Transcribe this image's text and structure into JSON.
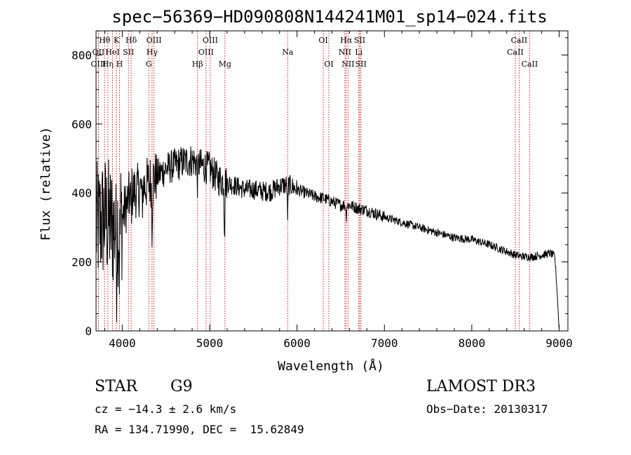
{
  "chart_data": {
    "type": "line",
    "title": "spec−56369−HD090808N144241M01_sp14−024.fits",
    "xlabel": "Wavelength (Å)",
    "ylabel": "Flux (relative)",
    "xlim": [
      3700,
      9100
    ],
    "ylim": [
      0,
      870
    ],
    "xticks": [
      4000,
      5000,
      6000,
      7000,
      8000,
      9000
    ],
    "yticks": [
      0,
      200,
      400,
      600,
      800
    ],
    "line_color": "#000000",
    "marker_color": "#cc0000",
    "grid": false,
    "legend": "none",
    "spectral_lines": [
      {
        "label": "Hθ",
        "wavelength": 3798,
        "row": 0
      },
      {
        "label": "OII",
        "wavelength": 3727,
        "row": 1
      },
      {
        "label": "OIII",
        "wavelength": 3727,
        "row": 2
      },
      {
        "label": "Hη",
        "wavelength": 3835,
        "row": 2
      },
      {
        "label": "K",
        "wavelength": 3934,
        "row": 0
      },
      {
        "label": "HeI",
        "wavelength": 3889,
        "row": 1
      },
      {
        "label": "SII",
        "wavelength": 4071,
        "row": 1
      },
      {
        "label": "H",
        "wavelength": 3969,
        "row": 2
      },
      {
        "label": "Hδ",
        "wavelength": 4102,
        "row": 0
      },
      {
        "label": "OIII",
        "wavelength": 4363,
        "row": 0
      },
      {
        "label": "Hγ",
        "wavelength": 4341,
        "row": 1
      },
      {
        "label": "G",
        "wavelength": 4304,
        "row": 2
      },
      {
        "label": "Hβ",
        "wavelength": 4861,
        "row": 2
      },
      {
        "label": "OIII",
        "wavelength": 5007,
        "row": 0
      },
      {
        "label": "OIII",
        "wavelength": 4959,
        "row": 1
      },
      {
        "label": "Mg",
        "wavelength": 5175,
        "row": 2
      },
      {
        "label": "Na",
        "wavelength": 5893,
        "row": 1
      },
      {
        "label": "OI",
        "wavelength": 6300,
        "row": 0
      },
      {
        "label": "OI",
        "wavelength": 6364,
        "row": 2
      },
      {
        "label": "Hα",
        "wavelength": 6563,
        "row": 0
      },
      {
        "label": "NII",
        "wavelength": 6548,
        "row": 1
      },
      {
        "label": "NII",
        "wavelength": 6584,
        "row": 2
      },
      {
        "label": "SII",
        "wavelength": 6717,
        "row": 0
      },
      {
        "label": "Li",
        "wavelength": 6707,
        "row": 1
      },
      {
        "label": "SII",
        "wavelength": 6731,
        "row": 2
      },
      {
        "label": "CaII",
        "wavelength": 8542,
        "row": 0
      },
      {
        "label": "CaII",
        "wavelength": 8498,
        "row": 1
      },
      {
        "label": "CaII",
        "wavelength": 8662,
        "row": 2
      }
    ],
    "continuum": {
      "wavelength": [
        3700,
        3800,
        3900,
        4000,
        4100,
        4200,
        4300,
        4400,
        4500,
        4600,
        4700,
        4800,
        4900,
        5000,
        5100,
        5200,
        5300,
        5400,
        5500,
        5600,
        5700,
        5800,
        5900,
        6000,
        6100,
        6200,
        6300,
        6400,
        6500,
        6600,
        6700,
        6800,
        6900,
        7000,
        7200,
        7400,
        7600,
        7800,
        8000,
        8200,
        8400,
        8500,
        8600,
        8700,
        8800,
        8900,
        8950,
        8980,
        9000
      ],
      "flux": [
        300,
        330,
        300,
        330,
        400,
        410,
        430,
        450,
        470,
        480,
        490,
        495,
        480,
        470,
        440,
        430,
        420,
        410,
        410,
        405,
        405,
        420,
        425,
        410,
        400,
        390,
        385,
        375,
        365,
        365,
        355,
        350,
        340,
        330,
        315,
        300,
        285,
        270,
        265,
        250,
        230,
        220,
        215,
        215,
        220,
        225,
        215,
        100,
        0
      ]
    },
    "absorption_features": [
      {
        "wavelength": 3934,
        "depth": 130
      },
      {
        "wavelength": 3969,
        "depth": 120
      },
      {
        "wavelength": 4102,
        "depth": 60
      },
      {
        "wavelength": 4227,
        "depth": 60
      },
      {
        "wavelength": 4340,
        "depth": 130
      },
      {
        "wavelength": 4861,
        "depth": 60
      },
      {
        "wavelength": 5170,
        "depth": 150
      },
      {
        "wavelength": 5893,
        "depth": 100
      },
      {
        "wavelength": 6563,
        "depth": 35
      }
    ]
  },
  "info": {
    "class_label": "STAR",
    "subclass": "G9",
    "survey": "LAMOST DR3",
    "cz": "cz = −14.3 ± 2.6 km/s",
    "obs_date": "Obs−Date: 20130317",
    "coords": "RA = 134.71990, DEC =  15.62849"
  }
}
